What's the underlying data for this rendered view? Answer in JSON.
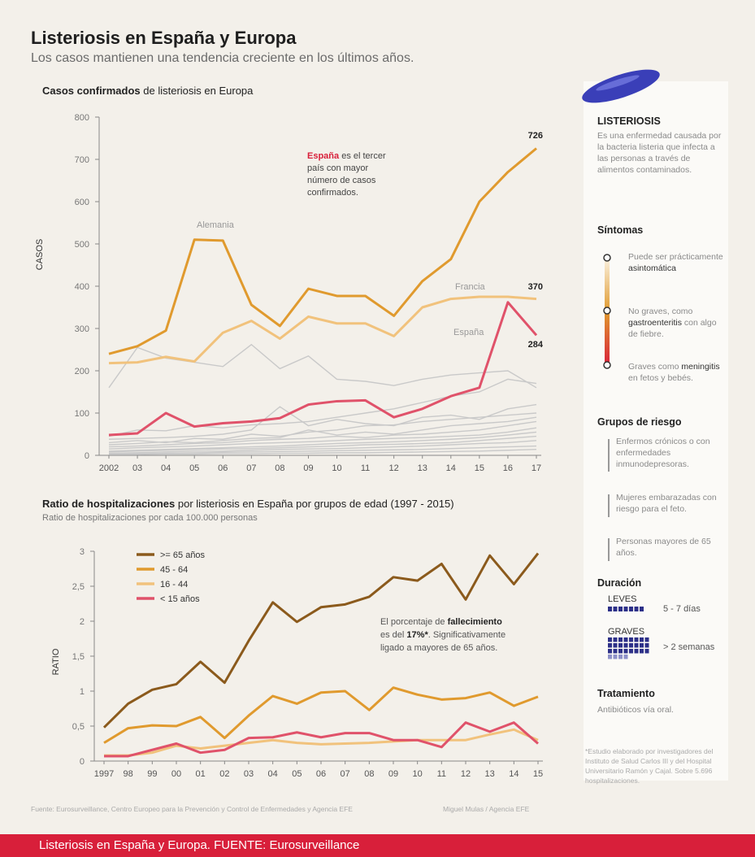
{
  "header": {
    "title": "Listeriosis en España y Europa",
    "subtitle": "Los casos mantienen una tendencia creciente en los últimos años."
  },
  "chart1": {
    "heading_bold": "Casos confirmados",
    "heading_rest": " de listeriosis en Europa",
    "annotation_bold": "España",
    "annotation_line1": " es el tercer",
    "annotation_line2": "país con mayor",
    "annotation_line3": "número de casos",
    "annotation_line4": "confirmados."
  },
  "chart2": {
    "heading_bold": "Ratio de hospitalizaciones",
    "heading_rest": " por listeriosis en España por grupos de edad (1997 - 2015)",
    "subheading": "Ratio de hospitalizaciones por cada 100.000 personas",
    "annotation_line1_a": "El porcentaje de ",
    "annotation_line1_b": "fallecimiento",
    "annotation_line2_a": "es del ",
    "annotation_line2_b": "17%*",
    "annotation_line2_c": ". Significativamente",
    "annotation_line3": "ligado a mayores de 65 años."
  },
  "chart_data": [
    {
      "type": "line",
      "title": "Casos confirmados de listeriosis en Europa",
      "ylabel": "CASOS",
      "xlabel": "",
      "ylim": [
        0,
        800
      ],
      "yticks": [
        0,
        100,
        200,
        300,
        400,
        500,
        600,
        700,
        800
      ],
      "categories": [
        "2002",
        "03",
        "04",
        "05",
        "06",
        "07",
        "08",
        "09",
        "10",
        "11",
        "12",
        "13",
        "14",
        "15",
        "16",
        "17"
      ],
      "series": [
        {
          "name": "Alemania",
          "color": "#e09a2e",
          "values": [
            240,
            258,
            295,
            510,
            508,
            356,
            306,
            394,
            377,
            377,
            330,
            412,
            464,
            600,
            670,
            726
          ],
          "end_label": "726"
        },
        {
          "name": "Francia",
          "color": "#f1c27c",
          "values": [
            218,
            220,
            233,
            222,
            290,
            318,
            276,
            328,
            312,
            312,
            282,
            350,
            370,
            375,
            375,
            370
          ],
          "end_label": "370"
        },
        {
          "name": "España",
          "color": "#e0526a",
          "values": [
            48,
            52,
            100,
            68,
            76,
            80,
            88,
            120,
            128,
            130,
            90,
            110,
            140,
            160,
            362,
            284
          ],
          "end_label": "284"
        }
      ],
      "background_series_color": "#c9c9c9",
      "background_series": [
        [
          160,
          255,
          230,
          220,
          210,
          262,
          205,
          235,
          180,
          175,
          165,
          180,
          190,
          195,
          200,
          160
        ],
        [
          45,
          60,
          58,
          70,
          65,
          72,
          75,
          80,
          90,
          100,
          110,
          125,
          140,
          150,
          180,
          170
        ],
        [
          38,
          40,
          42,
          45,
          50,
          60,
          115,
          70,
          85,
          75,
          70,
          90,
          95,
          85,
          110,
          120
        ],
        [
          30,
          35,
          30,
          40,
          38,
          50,
          45,
          55,
          60,
          70,
          72,
          80,
          85,
          90,
          95,
          100
        ],
        [
          25,
          28,
          32,
          30,
          35,
          40,
          42,
          60,
          48,
          55,
          50,
          60,
          70,
          75,
          80,
          90
        ],
        [
          20,
          22,
          25,
          28,
          30,
          35,
          38,
          40,
          45,
          42,
          48,
          50,
          55,
          60,
          70,
          80
        ],
        [
          15,
          18,
          20,
          22,
          25,
          28,
          30,
          32,
          35,
          38,
          40,
          42,
          45,
          48,
          55,
          65
        ],
        [
          10,
          12,
          14,
          16,
          18,
          20,
          22,
          25,
          28,
          30,
          32,
          35,
          38,
          42,
          48,
          55
        ],
        [
          8,
          10,
          12,
          14,
          15,
          16,
          18,
          20,
          22,
          25,
          26,
          28,
          30,
          35,
          40,
          45
        ],
        [
          5,
          6,
          8,
          10,
          10,
          12,
          14,
          15,
          16,
          18,
          20,
          22,
          25,
          28,
          30,
          35
        ],
        [
          3,
          4,
          5,
          6,
          7,
          8,
          9,
          10,
          11,
          12,
          13,
          14,
          16,
          18,
          20,
          22
        ],
        [
          2,
          2,
          3,
          3,
          4,
          4,
          5,
          5,
          6,
          6,
          7,
          8,
          9,
          10,
          12,
          14
        ]
      ]
    },
    {
      "type": "line",
      "title": "Ratio de hospitalizaciones por listeriosis en España por grupos de edad (1997 - 2015)",
      "ylabel": "RATIO",
      "xlabel": "",
      "ylim": [
        0,
        3
      ],
      "yticks": [
        "0",
        "0,5",
        "1",
        "1,5",
        "2",
        "2,5",
        "3"
      ],
      "ytick_values": [
        0,
        0.5,
        1,
        1.5,
        2,
        2.5,
        3
      ],
      "categories": [
        "1997",
        "98",
        "99",
        "00",
        "01",
        "02",
        "03",
        "04",
        "05",
        "06",
        "07",
        "08",
        "09",
        "10",
        "11",
        "12",
        "13",
        "14",
        "15"
      ],
      "legend": "top-left",
      "series": [
        {
          "name": ">= 65 años",
          "color": "#8b5a1c",
          "values": [
            0.48,
            0.82,
            1.02,
            1.1,
            1.42,
            1.12,
            1.72,
            2.27,
            1.99,
            2.2,
            2.24,
            2.35,
            2.63,
            2.58,
            2.82,
            2.31,
            2.94,
            2.53,
            2.97
          ]
        },
        {
          "name": "45 - 64",
          "color": "#e09a2e",
          "values": [
            0.26,
            0.47,
            0.51,
            0.5,
            0.63,
            0.33,
            0.65,
            0.93,
            0.82,
            0.98,
            1.0,
            0.73,
            1.05,
            0.95,
            0.88,
            0.9,
            0.98,
            0.79,
            0.92
          ]
        },
        {
          "name": "16 - 44",
          "color": "#f1c27c",
          "values": [
            0.08,
            0.08,
            0.12,
            0.22,
            0.18,
            0.22,
            0.26,
            0.3,
            0.26,
            0.24,
            0.25,
            0.26,
            0.28,
            0.3,
            0.3,
            0.3,
            0.38,
            0.45,
            0.3
          ]
        },
        {
          "name": "< 15 años",
          "color": "#e0526a",
          "values": [
            0.07,
            0.07,
            0.16,
            0.25,
            0.12,
            0.16,
            0.33,
            0.34,
            0.41,
            0.34,
            0.4,
            0.4,
            0.3,
            0.3,
            0.2,
            0.55,
            0.42,
            0.55,
            0.25
          ]
        }
      ]
    }
  ],
  "sidebar": {
    "listeriosis_title": "LISTERIOSIS",
    "listeriosis_text": "Es una enfermedad causada por la bacteria listeria que infecta a las personas a través de alimentos contaminados.",
    "sintomas_title": "Síntomas",
    "sintoma1_a": "Puede ser prácticamente ",
    "sintoma1_b": "asintomática",
    "sintoma2_a": "No graves, como ",
    "sintoma2_b": "gastroenteritis",
    "sintoma2_c": " con algo de fiebre.",
    "sintoma3_a": "Graves como ",
    "sintoma3_b": "meningitis",
    "sintoma3_c": " en fetos y bebés.",
    "grupos_title": "Grupos de riesgo",
    "grupo1": "Enfermos crónicos o con enfermedades inmunodepresoras.",
    "grupo2": "Mujeres embarazadas con riesgo para el feto.",
    "grupo3": "Personas mayores de 65 años.",
    "duracion_title": "Duración",
    "leves_label": "LEVES",
    "leves_value": "5 - 7 días",
    "graves_label": "GRAVES",
    "graves_value": "> 2 semanas",
    "tratamiento_title": "Tratamiento",
    "tratamiento_text": "Antibióticos vía oral.",
    "footnote": "*Estudio elaborado por investigadores del Instituto de Salud Carlos III y del Hospital Universitario Ramón y Cajal. Sobre 5.696 hospitalizaciones."
  },
  "footer": {
    "source": "Fuente: Eurosurveillance, Centro Europeo para la Prevención y Control de Enfermedades y Agencia EFE",
    "credit": "Miguel Mulas / Agencia EFE",
    "caption": "Listeriosis en España y Europa.  FUENTE: Eurosurveillance"
  },
  "colors": {
    "background": "#f3f0ea",
    "footer_bar": "#d81f3a",
    "alemania": "#e09a2e",
    "francia": "#f1c27c",
    "espana": "#e0526a",
    "mayores65": "#8b5a1c",
    "bacteria": "#3a3fb8"
  }
}
